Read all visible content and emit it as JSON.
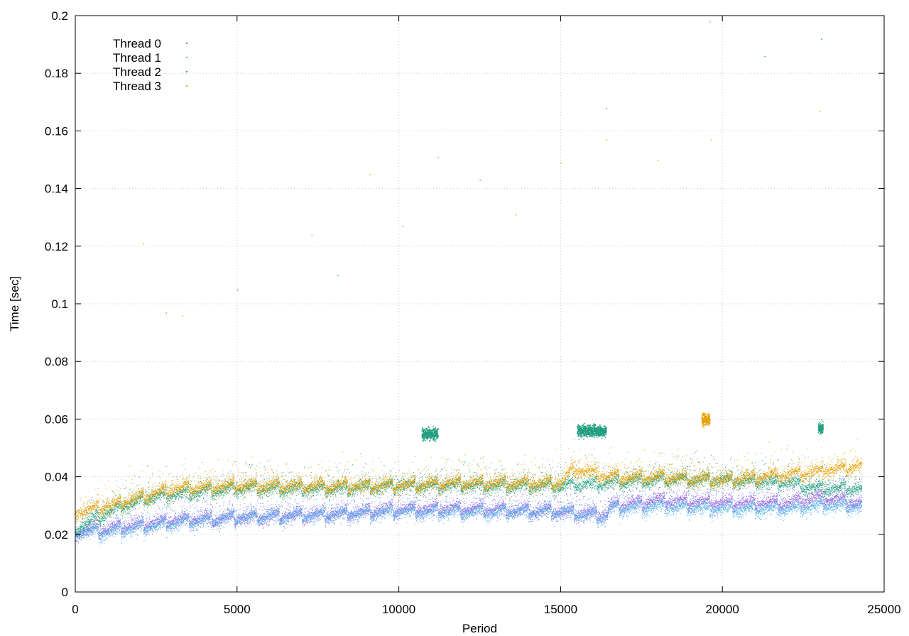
{
  "chart_data": {
    "type": "scatter",
    "title": "",
    "xlabel": "Period",
    "ylabel": "Time [sec]",
    "xlim": [
      0,
      25000
    ],
    "ylim": [
      0,
      0.2
    ],
    "x_ticks": [
      0,
      5000,
      10000,
      15000,
      20000,
      25000
    ],
    "y_ticks": [
      0,
      0.02,
      0.04,
      0.06,
      0.08,
      0.1,
      0.12,
      0.14,
      0.16,
      0.18,
      0.2
    ],
    "x_tick_labels": [
      "0",
      "5000",
      "10000",
      "15000",
      "20000",
      "25000"
    ],
    "y_tick_labels": [
      "0",
      "0.02",
      "0.04",
      "0.06",
      "0.08",
      "0.1",
      "0.12",
      "0.14",
      "0.16",
      "0.18",
      "0.2"
    ],
    "grid": true,
    "legend_position": "top-left",
    "x_range_of_data": [
      0,
      24300
    ],
    "series": [
      {
        "name": "Thread 0",
        "color": "#9b5de5",
        "baseline": [
          [
            0,
            0.021
          ],
          [
            1000,
            0.022
          ],
          [
            3000,
            0.025
          ],
          [
            5000,
            0.026
          ],
          [
            8000,
            0.027
          ],
          [
            10000,
            0.029
          ],
          [
            12000,
            0.029
          ],
          [
            15000,
            0.028
          ],
          [
            16400,
            0.027
          ],
          [
            16500,
            0.03
          ],
          [
            18000,
            0.032
          ],
          [
            20000,
            0.031
          ],
          [
            22000,
            0.031
          ],
          [
            23000,
            0.033
          ],
          [
            24300,
            0.031
          ]
        ],
        "clusters": [],
        "outliers": [
          [
            10100,
            0.127
          ],
          [
            16400,
            0.168
          ]
        ]
      },
      {
        "name": "Thread 1",
        "color": "#56b4e9",
        "baseline": [
          [
            0,
            0.021
          ],
          [
            1000,
            0.021
          ],
          [
            3000,
            0.024
          ],
          [
            5000,
            0.026
          ],
          [
            8000,
            0.027
          ],
          [
            10000,
            0.028
          ],
          [
            12000,
            0.028
          ],
          [
            15000,
            0.028
          ],
          [
            16400,
            0.026
          ],
          [
            16500,
            0.029
          ],
          [
            18000,
            0.03
          ],
          [
            20000,
            0.029
          ],
          [
            22000,
            0.029
          ],
          [
            23000,
            0.03
          ],
          [
            24300,
            0.03
          ]
        ],
        "clusters": [],
        "outliers": [
          [
            8100,
            0.11
          ],
          [
            11200,
            0.151
          ],
          [
            12500,
            0.143
          ]
        ]
      },
      {
        "name": "Thread 2",
        "color": "#1e9e7e",
        "baseline": [
          [
            0,
            0.022
          ],
          [
            1000,
            0.028
          ],
          [
            2000,
            0.032
          ],
          [
            3000,
            0.034
          ],
          [
            5000,
            0.036
          ],
          [
            8000,
            0.036
          ],
          [
            10000,
            0.037
          ],
          [
            12000,
            0.037
          ],
          [
            15000,
            0.037
          ],
          [
            16500,
            0.038
          ],
          [
            18000,
            0.039
          ],
          [
            20000,
            0.039
          ],
          [
            22000,
            0.038
          ],
          [
            23000,
            0.036
          ],
          [
            24300,
            0.036
          ]
        ],
        "clusters": [
          [
            10700,
            11200,
            0.055
          ],
          [
            15500,
            16400,
            0.056
          ],
          [
            22950,
            23100,
            0.057
          ]
        ],
        "outliers": [
          [
            5000,
            0.105
          ],
          [
            21300,
            0.186
          ],
          [
            23050,
            0.192
          ]
        ]
      },
      {
        "name": "Thread 3",
        "color": "#e69f00",
        "baseline": [
          [
            0,
            0.028
          ],
          [
            1000,
            0.03
          ],
          [
            2000,
            0.033
          ],
          [
            3000,
            0.036
          ],
          [
            5000,
            0.037
          ],
          [
            8000,
            0.037
          ],
          [
            10000,
            0.037
          ],
          [
            12000,
            0.038
          ],
          [
            15000,
            0.038
          ],
          [
            15400,
            0.043
          ],
          [
            16500,
            0.04
          ],
          [
            18000,
            0.04
          ],
          [
            20000,
            0.039
          ],
          [
            22000,
            0.041
          ],
          [
            23000,
            0.042
          ],
          [
            24300,
            0.044
          ]
        ],
        "clusters": [
          [
            19350,
            19600,
            0.06
          ]
        ],
        "outliers": [
          [
            2100,
            0.121
          ],
          [
            2800,
            0.097
          ],
          [
            3300,
            0.096
          ],
          [
            7300,
            0.124
          ],
          [
            9100,
            0.145
          ],
          [
            13600,
            0.131
          ],
          [
            15000,
            0.149
          ],
          [
            16400,
            0.157
          ],
          [
            18000,
            0.15
          ],
          [
            19600,
            0.198
          ],
          [
            19650,
            0.157
          ],
          [
            23000,
            0.167
          ]
        ]
      }
    ]
  }
}
